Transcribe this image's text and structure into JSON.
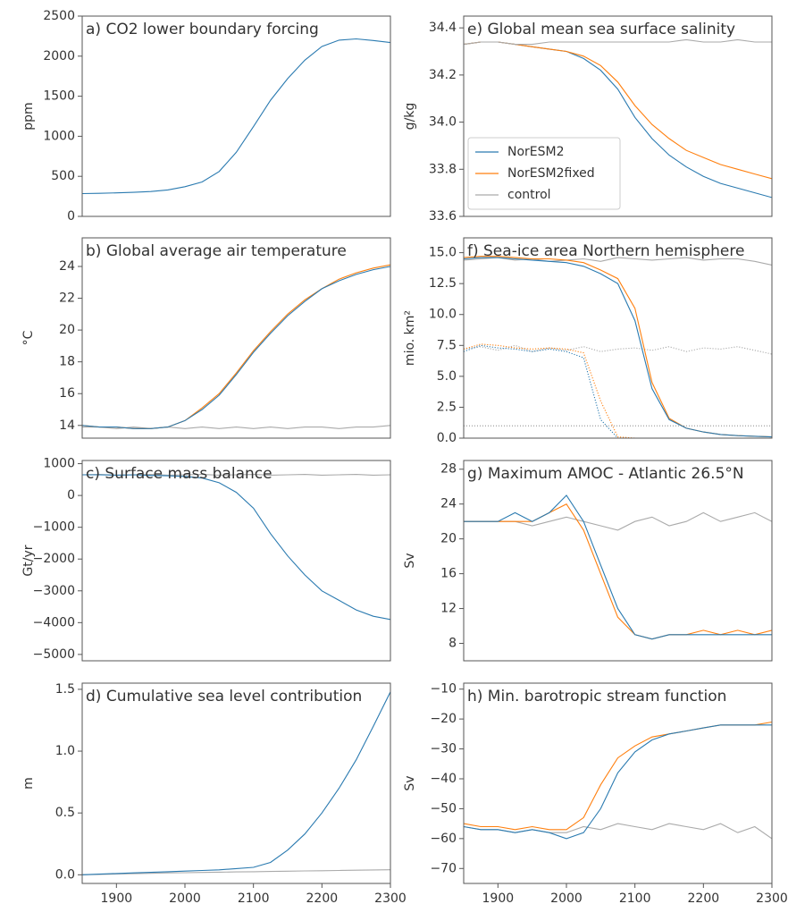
{
  "chart_data": [
    {
      "type": "line",
      "title": "a) CO2 lower boundary forcing",
      "ylabel": "ppm",
      "x": [
        1850,
        1875,
        1900,
        1925,
        1950,
        1975,
        2000,
        2025,
        2050,
        2075,
        2100,
        2125,
        2150,
        2175,
        2200,
        2225,
        2250,
        2275,
        2300
      ],
      "xlim": [
        1850,
        2300
      ],
      "ylim": [
        0,
        2500
      ],
      "yticks": [
        0,
        500,
        1000,
        1500,
        2000,
        2500
      ],
      "series": [
        {
          "color": "#2a7ab0",
          "values": [
            285,
            288,
            293,
            300,
            310,
            330,
            370,
            430,
            560,
            800,
            1120,
            1450,
            1720,
            1950,
            2120,
            2200,
            2215,
            2195,
            2170
          ]
        }
      ]
    },
    {
      "type": "line",
      "title": "b) Global average air temperature",
      "ylabel": "°C",
      "x": [
        1850,
        1875,
        1900,
        1925,
        1950,
        1975,
        2000,
        2025,
        2050,
        2075,
        2100,
        2125,
        2150,
        2175,
        2200,
        2225,
        2250,
        2275,
        2300
      ],
      "xlim": [
        1850,
        2300
      ],
      "ylim": [
        13.2,
        25.8
      ],
      "yticks": [
        14,
        16,
        18,
        20,
        22,
        24
      ],
      "series": [
        {
          "color": "#aaaaaa",
          "values": [
            13.9,
            13.9,
            13.8,
            13.9,
            13.8,
            13.9,
            13.8,
            13.9,
            13.8,
            13.9,
            13.8,
            13.9,
            13.8,
            13.9,
            13.9,
            13.8,
            13.9,
            13.9,
            14.0
          ]
        },
        {
          "color": "#ff7f0e",
          "values": [
            14.0,
            13.9,
            13.9,
            13.8,
            13.8,
            13.9,
            14.3,
            15.1,
            16.0,
            17.3,
            18.7,
            19.9,
            21.0,
            21.9,
            22.6,
            23.2,
            23.6,
            23.9,
            24.1
          ]
        },
        {
          "color": "#2a7ab0",
          "values": [
            14.0,
            13.9,
            13.9,
            13.8,
            13.8,
            13.9,
            14.3,
            15.0,
            15.9,
            17.2,
            18.6,
            19.8,
            20.9,
            21.8,
            22.6,
            23.1,
            23.5,
            23.8,
            24.0
          ]
        }
      ]
    },
    {
      "type": "line",
      "title": "c) Surface mass balance",
      "ylabel": "Gt/yr",
      "x": [
        1850,
        1875,
        1900,
        1925,
        1950,
        1975,
        2000,
        2025,
        2050,
        2075,
        2100,
        2125,
        2150,
        2175,
        2200,
        2225,
        2250,
        2275,
        2300
      ],
      "xlim": [
        1850,
        2300
      ],
      "ylim": [
        -5200,
        1100
      ],
      "yticks": [
        {
          "value": -5000,
          "label": "−5000"
        },
        {
          "value": -4000,
          "label": "−4000"
        },
        {
          "value": -3000,
          "label": "−3000"
        },
        {
          "value": -2000,
          "label": "−2000"
        },
        {
          "value": -1000,
          "label": "−1000"
        },
        0,
        1000
      ],
      "series": [
        {
          "color": "#aaaaaa",
          "values": [
            650,
            660,
            640,
            650,
            660,
            640,
            650,
            660,
            640,
            650,
            660,
            640,
            650,
            660,
            640,
            650,
            660,
            640,
            650
          ]
        },
        {
          "color": "#2a7ab0",
          "values": [
            650,
            650,
            640,
            650,
            630,
            620,
            600,
            550,
            400,
            100,
            -400,
            -1200,
            -1900,
            -2500,
            -3000,
            -3300,
            -3600,
            -3800,
            -3900
          ]
        }
      ]
    },
    {
      "type": "line",
      "title": "d) Cumulative sea level contribution",
      "ylabel": "m",
      "x": [
        1850,
        1875,
        1900,
        1925,
        1950,
        1975,
        2000,
        2025,
        2050,
        2075,
        2100,
        2125,
        2150,
        2175,
        2200,
        2225,
        2250,
        2275,
        2300
      ],
      "xlim": [
        1850,
        2300
      ],
      "xticks": [
        1900,
        2000,
        2100,
        2200,
        2300
      ],
      "ylim": [
        -0.07,
        1.55
      ],
      "yticks": [
        {
          "value": 0,
          "label": "0.0"
        },
        0.5,
        {
          "value": 1,
          "label": "1.0"
        },
        1.5
      ],
      "series": [
        {
          "color": "#aaaaaa",
          "values": [
            0.0,
            0.003,
            0.006,
            0.009,
            0.012,
            0.015,
            0.017,
            0.019,
            0.021,
            0.023,
            0.025,
            0.027,
            0.029,
            0.031,
            0.033,
            0.035,
            0.037,
            0.039,
            0.041
          ]
        },
        {
          "color": "#2a7ab0",
          "values": [
            0.0,
            0.005,
            0.01,
            0.015,
            0.02,
            0.025,
            0.03,
            0.035,
            0.04,
            0.05,
            0.06,
            0.1,
            0.2,
            0.33,
            0.5,
            0.7,
            0.93,
            1.2,
            1.48
          ]
        }
      ]
    },
    {
      "type": "line",
      "title": "e) Global mean sea surface salinity",
      "ylabel": "g/kg",
      "legend": "lower left",
      "x": [
        1850,
        1875,
        1900,
        1925,
        1950,
        1975,
        2000,
        2025,
        2050,
        2075,
        2100,
        2125,
        2150,
        2175,
        2200,
        2225,
        2250,
        2275,
        2300
      ],
      "xlim": [
        1850,
        2300
      ],
      "ylim": [
        33.6,
        34.45
      ],
      "yticks": [
        33.6,
        33.8,
        {
          "value": 34,
          "label": "34.0"
        },
        34.2,
        34.4
      ],
      "series": [
        {
          "name": "NorESM2",
          "color": "#2a7ab0",
          "values": [
            34.33,
            34.34,
            34.34,
            34.33,
            34.32,
            34.31,
            34.3,
            34.27,
            34.22,
            34.14,
            34.02,
            33.93,
            33.86,
            33.81,
            33.77,
            33.74,
            33.72,
            33.7,
            33.68
          ]
        },
        {
          "name": "NorESM2fixed",
          "color": "#ff7f0e",
          "values": [
            34.33,
            34.34,
            34.34,
            34.33,
            34.32,
            34.31,
            34.3,
            34.28,
            34.24,
            34.17,
            34.07,
            33.99,
            33.93,
            33.88,
            33.85,
            33.82,
            33.8,
            33.78,
            33.76
          ]
        },
        {
          "name": "control",
          "color": "#aaaaaa",
          "values": [
            34.33,
            34.34,
            34.34,
            34.33,
            34.33,
            34.34,
            34.34,
            34.34,
            34.34,
            34.34,
            34.34,
            34.34,
            34.34,
            34.35,
            34.34,
            34.34,
            34.35,
            34.34,
            34.34
          ]
        }
      ]
    },
    {
      "type": "line",
      "title": "f) Sea-ice area Northern hemisphere",
      "ylabel": "mio. km²",
      "x": [
        1850,
        1875,
        1900,
        1925,
        1950,
        1975,
        2000,
        2025,
        2050,
        2075,
        2100,
        2125,
        2150,
        2175,
        2200,
        2225,
        2250,
        2275,
        2300
      ],
      "xlim": [
        1850,
        2300
      ],
      "ylim": [
        0,
        16.2
      ],
      "yticks": [
        {
          "value": 0,
          "label": "0.0"
        },
        2.5,
        {
          "value": 5,
          "label": "5.0"
        },
        7.5,
        {
          "value": 10,
          "label": "10.0"
        },
        12.5,
        {
          "value": 15,
          "label": "15.0"
        }
      ],
      "hline": 1,
      "series": [
        {
          "color": "#aaaaaa",
          "values": [
            14.4,
            14.5,
            14.6,
            14.4,
            14.5,
            14.3,
            14.4,
            14.5,
            14.3,
            14.6,
            14.5,
            14.4,
            14.5,
            14.6,
            14.4,
            14.5,
            14.5,
            14.3,
            14.0
          ]
        },
        {
          "color": "#aaaaaa",
          "dash": "dotted",
          "values": [
            7.2,
            7.4,
            7.1,
            7.5,
            7.0,
            7.3,
            7.1,
            7.4,
            7.0,
            7.2,
            7.3,
            7.1,
            7.4,
            7.0,
            7.3,
            7.2,
            7.4,
            7.1,
            6.8
          ]
        },
        {
          "color": "#ff7f0e",
          "dash": "dotted",
          "values": [
            7.2,
            7.6,
            7.5,
            7.3,
            7.2,
            7.3,
            7.2,
            6.9,
            3.0,
            0.1,
            0,
            0,
            0,
            0,
            0,
            0,
            0,
            0,
            0
          ]
        },
        {
          "color": "#2a7ab0",
          "dash": "dotted",
          "values": [
            7.0,
            7.5,
            7.3,
            7.2,
            7.0,
            7.2,
            7.0,
            6.5,
            1.5,
            0,
            0,
            0,
            0,
            0,
            0,
            0,
            0,
            0,
            0
          ]
        },
        {
          "color": "#ff7f0e",
          "values": [
            14.6,
            14.7,
            14.7,
            14.6,
            14.5,
            14.5,
            14.4,
            14.2,
            13.6,
            12.9,
            10.5,
            4.5,
            1.6,
            0.8,
            0.5,
            0.3,
            0.2,
            0.15,
            0.1
          ]
        },
        {
          "color": "#2a7ab0",
          "values": [
            14.5,
            14.6,
            14.6,
            14.5,
            14.4,
            14.3,
            14.2,
            13.9,
            13.3,
            12.5,
            9.5,
            4.0,
            1.5,
            0.8,
            0.5,
            0.3,
            0.2,
            0.15,
            0.1
          ]
        }
      ]
    },
    {
      "type": "line",
      "title": "g) Maximum AMOC - Atlantic 26.5°N",
      "ylabel": "Sv",
      "x": [
        1850,
        1875,
        1900,
        1925,
        1950,
        1975,
        2000,
        2025,
        2050,
        2075,
        2100,
        2125,
        2150,
        2175,
        2200,
        2225,
        2250,
        2275,
        2300
      ],
      "xlim": [
        1850,
        2300
      ],
      "ylim": [
        6,
        29
      ],
      "yticks": [
        8,
        12,
        16,
        20,
        24,
        28
      ],
      "series": [
        {
          "color": "#aaaaaa",
          "values": [
            22,
            22,
            22,
            22,
            21.5,
            22,
            22.5,
            22,
            21.5,
            21,
            22,
            22.5,
            21.5,
            22,
            23,
            22,
            22.5,
            23,
            22
          ]
        },
        {
          "color": "#ff7f0e",
          "values": [
            22,
            22,
            22,
            22,
            22,
            23,
            24,
            21,
            16,
            11,
            9,
            8.5,
            9,
            9,
            9.5,
            9,
            9.5,
            9,
            9.5
          ]
        },
        {
          "color": "#2a7ab0",
          "values": [
            22,
            22,
            22,
            23,
            22,
            23,
            25,
            22,
            17,
            12,
            9,
            8.5,
            9,
            9,
            9,
            9,
            9,
            9,
            9
          ]
        }
      ]
    },
    {
      "type": "line",
      "title": "h) Min. barotropic stream function",
      "ylabel": "Sv",
      "x": [
        1850,
        1875,
        1900,
        1925,
        1950,
        1975,
        2000,
        2025,
        2050,
        2075,
        2100,
        2125,
        2150,
        2175,
        2200,
        2225,
        2250,
        2275,
        2300
      ],
      "xlim": [
        1850,
        2300
      ],
      "xticks": [
        1900,
        2000,
        2100,
        2200,
        2300
      ],
      "ylim": [
        -75,
        -8
      ],
      "yticks": [
        {
          "value": -70,
          "label": "−70"
        },
        {
          "value": -60,
          "label": "−60"
        },
        {
          "value": -50,
          "label": "−50"
        },
        {
          "value": -40,
          "label": "−40"
        },
        {
          "value": -30,
          "label": "−30"
        },
        {
          "value": -20,
          "label": "−20"
        },
        {
          "value": -10,
          "label": "−10"
        }
      ],
      "series": [
        {
          "color": "#aaaaaa",
          "values": [
            -56,
            -57,
            -57,
            -58,
            -57,
            -58,
            -58,
            -56,
            -57,
            -55,
            -56,
            -57,
            -55,
            -56,
            -57,
            -55,
            -58,
            -56,
            -60
          ]
        },
        {
          "color": "#ff7f0e",
          "values": [
            -55,
            -56,
            -56,
            -57,
            -56,
            -57,
            -57,
            -53,
            -42,
            -33,
            -29,
            -26,
            -25,
            -24,
            -23,
            -22,
            -22,
            -22,
            -21
          ]
        },
        {
          "color": "#2a7ab0",
          "values": [
            -56,
            -57,
            -57,
            -58,
            -57,
            -58,
            -60,
            -58,
            -50,
            -38,
            -31,
            -27,
            -25,
            -24,
            -23,
            -22,
            -22,
            -22,
            -22
          ]
        }
      ]
    }
  ]
}
